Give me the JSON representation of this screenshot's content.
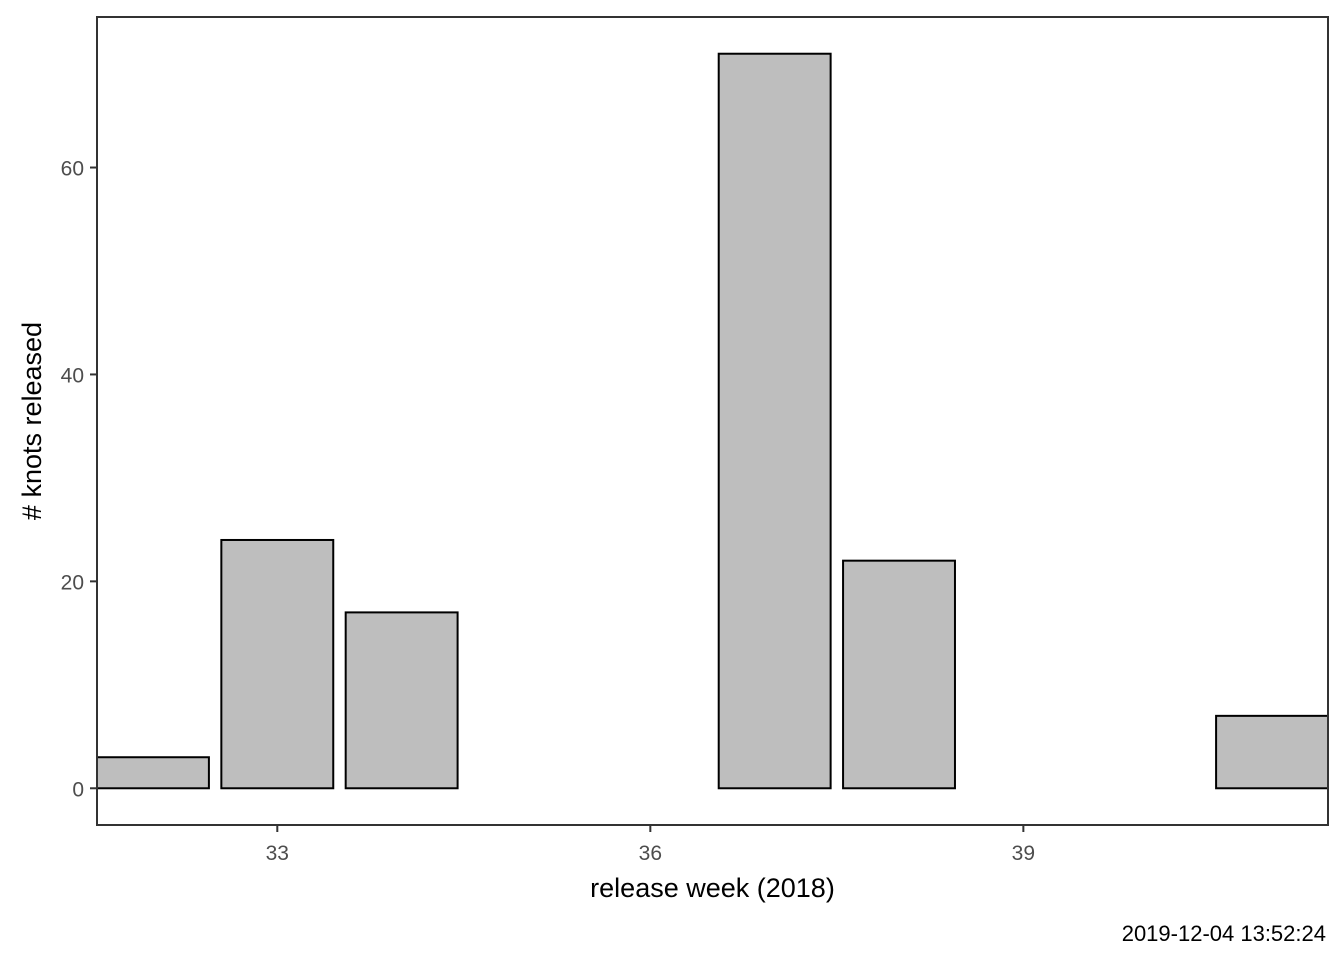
{
  "chart_data": {
    "type": "bar",
    "x": [
      32,
      33,
      34,
      37,
      38,
      41
    ],
    "values": [
      3,
      24,
      17,
      71,
      22,
      7
    ],
    "xlabel": "release week (2018)",
    "ylabel": "# knots released",
    "x_ticks": [
      33,
      36,
      39
    ],
    "y_ticks": [
      0,
      20,
      40,
      60
    ],
    "xlim": [
      31.55,
      41.45
    ],
    "ylim": [
      -3.55,
      74.55
    ],
    "bar_width": 0.9,
    "grid": false,
    "legend": "none",
    "caption": "2019-12-04 13:52:24",
    "colors": {
      "bar_fill": "#bebebe",
      "bar_stroke": "#000000",
      "panel_border": "#333333",
      "tick_label": "#4d4d4d"
    }
  }
}
